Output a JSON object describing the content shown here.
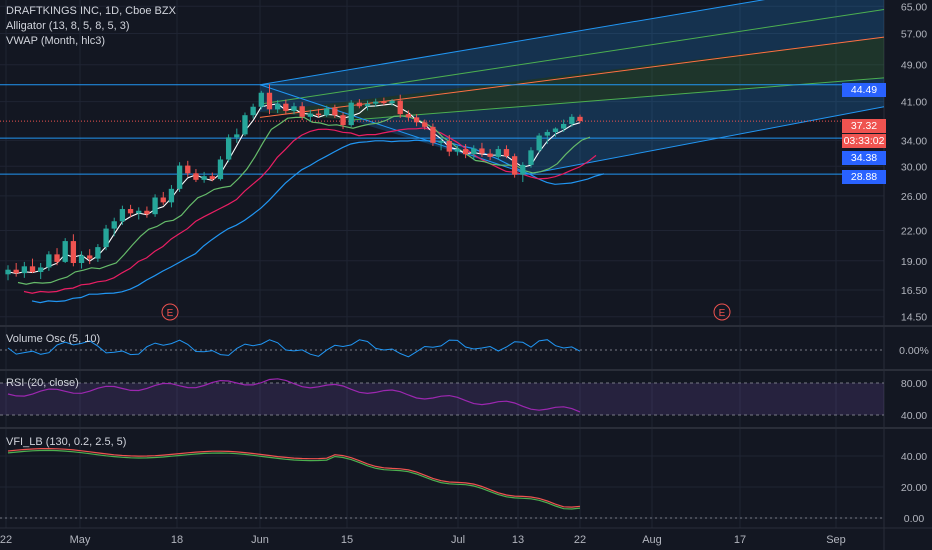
{
  "legend": {
    "symbol": "DRAFTKINGS INC, 1D, Cboe BZX",
    "alligator": "Alligator (13, 8, 5, 8, 5, 3)",
    "vwap": "VWAP (Month, hlc3)"
  },
  "panes": {
    "volume_osc": "Volume Osc (5, 10)",
    "rsi": "RSI (20, close)",
    "vfi": "VFI_LB (130, 0.2, 2.5, 5)"
  },
  "price_axis": [
    "65.00",
    "57.00",
    "49.00",
    "41.00",
    "34.00",
    "30.00",
    "26.00",
    "22.00",
    "19.00",
    "16.50",
    "14.50"
  ],
  "price_labels": [
    {
      "text": "44.49",
      "color": "#2962ff"
    },
    {
      "text": "37.32",
      "color": "#ef5350"
    },
    {
      "text": "03:33:02",
      "color": "#ef5350"
    },
    {
      "text": "34.38",
      "color": "#2962ff"
    },
    {
      "text": "28.88",
      "color": "#2962ff"
    }
  ],
  "vol_axis": [
    "0.00%"
  ],
  "rsi_axis": [
    "80.00",
    "40.00"
  ],
  "vfi_axis": [
    "40.00",
    "20.00",
    "0.00"
  ],
  "date_axis": [
    "22",
    "May",
    "18",
    "Jun",
    "15",
    "Jul",
    "13",
    "22",
    "Aug",
    "17",
    "Sep"
  ],
  "earnings_marker": "E",
  "colors": {
    "up": "#26a69a",
    "down": "#ef5350",
    "background": "#131722",
    "fork_blue": "#2196f3",
    "rsi_purple": "#9c27b0"
  },
  "chart_data": {
    "type": "candlestick",
    "title": "DRAFTKINGS INC, 1D, Cboe BZX",
    "ylim": [
      14.0,
      67.0
    ],
    "scale": "log",
    "last_price": 37.32,
    "candles": [
      {
        "o": 17.8,
        "h": 18.6,
        "l": 17.3,
        "c": 18.2
      },
      {
        "o": 18.2,
        "h": 18.8,
        "l": 17.6,
        "c": 17.9
      },
      {
        "o": 17.9,
        "h": 18.9,
        "l": 17.5,
        "c": 18.5
      },
      {
        "o": 18.5,
        "h": 19.2,
        "l": 17.9,
        "c": 18.0
      },
      {
        "o": 18.0,
        "h": 18.8,
        "l": 17.4,
        "c": 18.4
      },
      {
        "o": 18.4,
        "h": 19.9,
        "l": 18.1,
        "c": 19.6
      },
      {
        "o": 19.6,
        "h": 20.2,
        "l": 18.6,
        "c": 18.9
      },
      {
        "o": 18.9,
        "h": 21.2,
        "l": 18.8,
        "c": 20.9
      },
      {
        "o": 20.9,
        "h": 21.6,
        "l": 18.5,
        "c": 18.8
      },
      {
        "o": 18.8,
        "h": 19.9,
        "l": 18.3,
        "c": 19.5
      },
      {
        "o": 19.5,
        "h": 20.1,
        "l": 18.7,
        "c": 19.2
      },
      {
        "o": 19.2,
        "h": 20.6,
        "l": 18.9,
        "c": 20.3
      },
      {
        "o": 20.3,
        "h": 22.6,
        "l": 20.0,
        "c": 22.2
      },
      {
        "o": 22.2,
        "h": 23.4,
        "l": 21.4,
        "c": 23.0
      },
      {
        "o": 23.0,
        "h": 24.8,
        "l": 22.6,
        "c": 24.4
      },
      {
        "o": 24.4,
        "h": 24.9,
        "l": 23.5,
        "c": 23.9
      },
      {
        "o": 23.9,
        "h": 24.6,
        "l": 23.2,
        "c": 24.2
      },
      {
        "o": 24.2,
        "h": 24.7,
        "l": 23.4,
        "c": 23.8
      },
      {
        "o": 23.8,
        "h": 26.2,
        "l": 23.5,
        "c": 25.8
      },
      {
        "o": 25.8,
        "h": 26.5,
        "l": 24.9,
        "c": 25.2
      },
      {
        "o": 25.2,
        "h": 27.4,
        "l": 24.6,
        "c": 26.9
      },
      {
        "o": 26.9,
        "h": 30.6,
        "l": 26.5,
        "c": 30.1
      },
      {
        "o": 30.1,
        "h": 30.8,
        "l": 28.5,
        "c": 29.0
      },
      {
        "o": 29.0,
        "h": 29.6,
        "l": 27.8,
        "c": 28.1
      },
      {
        "o": 28.1,
        "h": 29.2,
        "l": 27.7,
        "c": 28.6
      },
      {
        "o": 28.6,
        "h": 29.1,
        "l": 27.9,
        "c": 28.2
      },
      {
        "o": 28.2,
        "h": 31.5,
        "l": 28.0,
        "c": 31.0
      },
      {
        "o": 31.0,
        "h": 35.0,
        "l": 30.6,
        "c": 34.5
      },
      {
        "o": 34.5,
        "h": 36.0,
        "l": 33.6,
        "c": 35.0
      },
      {
        "o": 35.0,
        "h": 38.9,
        "l": 34.7,
        "c": 38.4
      },
      {
        "o": 38.4,
        "h": 40.6,
        "l": 37.8,
        "c": 40.0
      },
      {
        "o": 40.0,
        "h": 43.2,
        "l": 39.5,
        "c": 42.8
      },
      {
        "o": 42.8,
        "h": 44.6,
        "l": 38.6,
        "c": 39.5
      },
      {
        "o": 39.5,
        "h": 41.3,
        "l": 38.8,
        "c": 40.6
      },
      {
        "o": 40.6,
        "h": 41.4,
        "l": 38.5,
        "c": 39.2
      },
      {
        "o": 39.2,
        "h": 40.8,
        "l": 38.6,
        "c": 40.1
      },
      {
        "o": 40.1,
        "h": 40.9,
        "l": 37.5,
        "c": 38.1
      },
      {
        "o": 38.1,
        "h": 39.4,
        "l": 37.2,
        "c": 38.7
      },
      {
        "o": 38.7,
        "h": 39.6,
        "l": 38.0,
        "c": 38.4
      },
      {
        "o": 38.4,
        "h": 40.2,
        "l": 38.1,
        "c": 39.7
      },
      {
        "o": 39.7,
        "h": 40.4,
        "l": 37.9,
        "c": 38.4
      },
      {
        "o": 38.4,
        "h": 38.9,
        "l": 35.9,
        "c": 36.6
      },
      {
        "o": 36.6,
        "h": 41.3,
        "l": 36.3,
        "c": 40.8
      },
      {
        "o": 40.8,
        "h": 41.5,
        "l": 39.7,
        "c": 40.1
      },
      {
        "o": 40.1,
        "h": 41.2,
        "l": 39.3,
        "c": 40.6
      },
      {
        "o": 40.6,
        "h": 41.6,
        "l": 40.0,
        "c": 41.0
      },
      {
        "o": 41.0,
        "h": 41.8,
        "l": 40.3,
        "c": 40.7
      },
      {
        "o": 40.7,
        "h": 41.5,
        "l": 40.2,
        "c": 41.2
      },
      {
        "o": 41.2,
        "h": 42.4,
        "l": 37.9,
        "c": 38.6
      },
      {
        "o": 38.6,
        "h": 39.3,
        "l": 37.4,
        "c": 38.0
      },
      {
        "o": 38.0,
        "h": 38.6,
        "l": 36.4,
        "c": 37.1
      },
      {
        "o": 37.1,
        "h": 37.6,
        "l": 35.8,
        "c": 36.3
      },
      {
        "o": 36.3,
        "h": 36.9,
        "l": 33.1,
        "c": 33.6
      },
      {
        "o": 33.6,
        "h": 34.6,
        "l": 32.4,
        "c": 33.9
      },
      {
        "o": 33.9,
        "h": 34.9,
        "l": 31.5,
        "c": 32.2
      },
      {
        "o": 32.2,
        "h": 33.1,
        "l": 31.6,
        "c": 32.6
      },
      {
        "o": 32.6,
        "h": 33.4,
        "l": 31.2,
        "c": 31.8
      },
      {
        "o": 31.8,
        "h": 33.2,
        "l": 30.9,
        "c": 32.7
      },
      {
        "o": 32.7,
        "h": 33.6,
        "l": 31.4,
        "c": 31.9
      },
      {
        "o": 31.9,
        "h": 32.6,
        "l": 30.9,
        "c": 31.4
      },
      {
        "o": 31.4,
        "h": 33.1,
        "l": 31.0,
        "c": 32.6
      },
      {
        "o": 32.6,
        "h": 33.2,
        "l": 31.2,
        "c": 31.5
      },
      {
        "o": 31.5,
        "h": 31.9,
        "l": 28.4,
        "c": 28.8
      },
      {
        "o": 28.8,
        "h": 30.6,
        "l": 27.8,
        "c": 30.2
      },
      {
        "o": 30.2,
        "h": 32.9,
        "l": 29.8,
        "c": 32.4
      },
      {
        "o": 32.4,
        "h": 35.2,
        "l": 32.0,
        "c": 34.8
      },
      {
        "o": 34.8,
        "h": 35.8,
        "l": 33.4,
        "c": 35.4
      },
      {
        "o": 35.4,
        "h": 36.2,
        "l": 34.6,
        "c": 36.0
      },
      {
        "o": 36.0,
        "h": 37.6,
        "l": 35.4,
        "c": 36.8
      },
      {
        "o": 36.8,
        "h": 38.6,
        "l": 36.3,
        "c": 38.1
      },
      {
        "o": 38.1,
        "h": 38.5,
        "l": 37.0,
        "c": 37.32
      }
    ],
    "rsi_bands": [
      40,
      80
    ],
    "vfi_levels": [
      0,
      20,
      40
    ]
  }
}
